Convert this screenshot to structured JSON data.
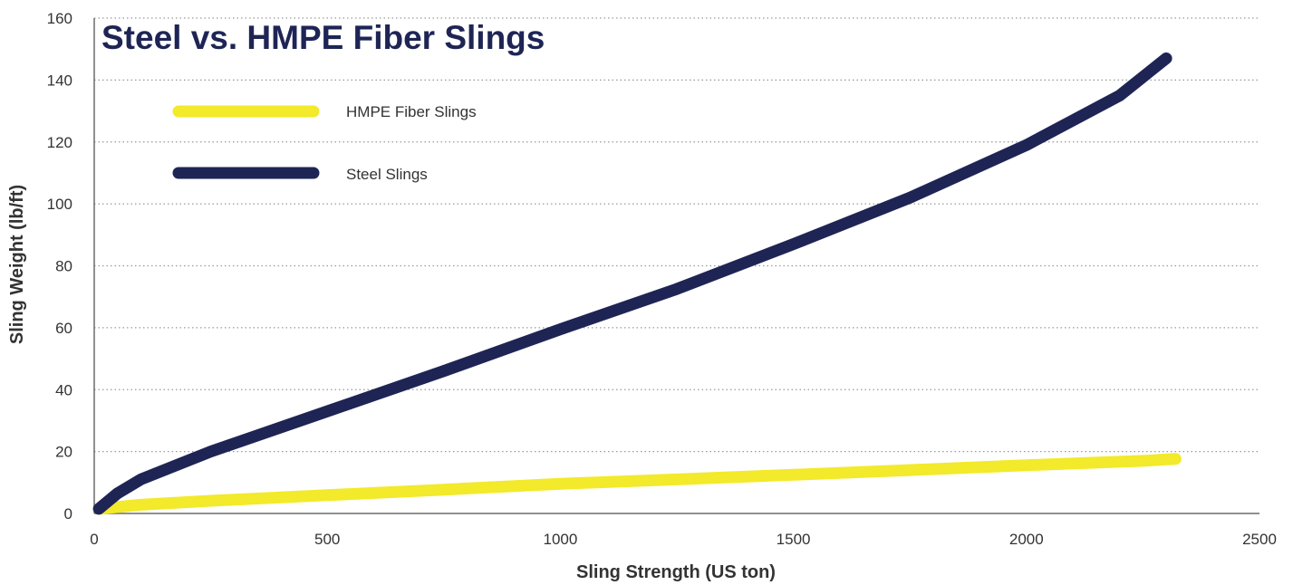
{
  "chart_data": {
    "type": "line",
    "title": "Steel vs. HMPE Fiber Slings",
    "xlabel": "Sling Strength (US ton)",
    "ylabel": "Sling Weight (lb/ft)",
    "xlim": [
      0,
      2500
    ],
    "ylim": [
      0,
      160
    ],
    "xticks": [
      0,
      500,
      1000,
      1500,
      2000,
      2500
    ],
    "yticks": [
      0,
      20,
      40,
      60,
      80,
      100,
      120,
      140,
      160
    ],
    "grid": "horizontal dotted",
    "legend_position": "top-left",
    "series": [
      {
        "name": "HMPE Fiber Slings",
        "color": "#f2ea2a",
        "x": [
          10,
          100,
          250,
          500,
          750,
          1000,
          1250,
          1500,
          1750,
          2000,
          2250,
          2320
        ],
        "y": [
          1.5,
          2.8,
          4.1,
          5.9,
          7.7,
          9.6,
          11.0,
          12.5,
          14.0,
          15.6,
          17.0,
          17.6
        ]
      },
      {
        "name": "Steel Slings",
        "color": "#1e2555",
        "x": [
          10,
          50,
          100,
          250,
          500,
          750,
          1000,
          1250,
          1500,
          1750,
          2000,
          2200,
          2300
        ],
        "y": [
          1.5,
          6.5,
          11,
          20,
          33,
          46,
          59.5,
          72.5,
          87,
          102,
          119,
          135,
          147
        ]
      }
    ]
  }
}
